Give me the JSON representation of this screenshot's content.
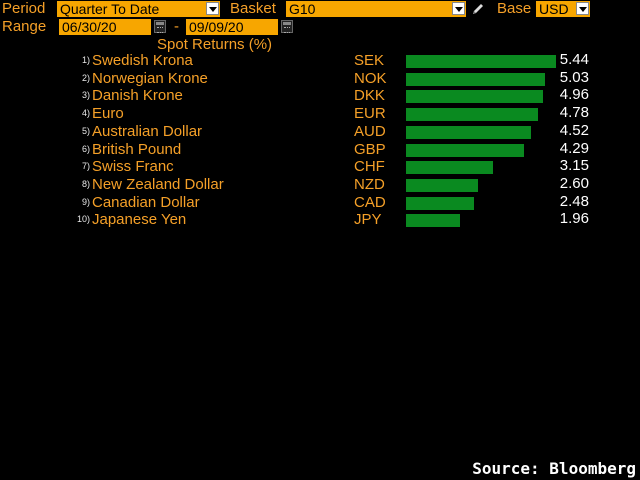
{
  "controls": {
    "period_label": "Period",
    "period_value": "Quarter To Date",
    "basket_label": "Basket",
    "basket_value": "G10",
    "base_label": "Base",
    "base_value": "USD",
    "range_label": "Range",
    "range_start": "06/30/20",
    "range_sep": "-",
    "range_end": "09/09/20"
  },
  "chart_title": "Spot Returns (%)",
  "chart_data": {
    "type": "bar",
    "title": "Spot Returns (%)",
    "orientation": "horizontal",
    "categories": [
      "Swedish Krona",
      "Norwegian Krone",
      "Danish Krone",
      "Euro",
      "Australian Dollar",
      "British Pound",
      "Swiss Franc",
      "New Zealand Dollar",
      "Canadian Dollar",
      "Japanese Yen"
    ],
    "codes": [
      "SEK",
      "NOK",
      "DKK",
      "EUR",
      "AUD",
      "GBP",
      "CHF",
      "NZD",
      "CAD",
      "JPY"
    ],
    "ranks": [
      "1)",
      "2)",
      "3)",
      "4)",
      "5)",
      "6)",
      "7)",
      "8)",
      "9)",
      "10)"
    ],
    "values": [
      5.44,
      5.03,
      4.96,
      4.78,
      4.52,
      4.29,
      3.15,
      2.6,
      2.48,
      1.96
    ],
    "value_labels": [
      "5.44",
      "5.03",
      "4.96",
      "4.78",
      "4.52",
      "4.29",
      "3.15",
      "2.60",
      "2.48",
      "1.96"
    ],
    "bar_color": "#0a8a20",
    "xlim": [
      0,
      5.44
    ]
  },
  "footer": {
    "source": "Source: Bloomberg"
  }
}
